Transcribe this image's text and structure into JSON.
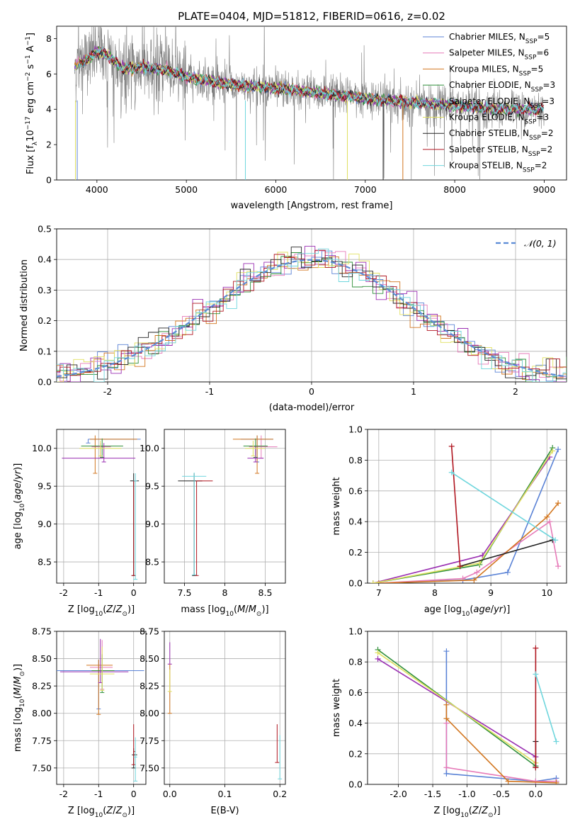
{
  "figure": {
    "title": "PLATE=0404, MJD=51812, FIBERID=0616, z=0.02"
  },
  "colors": {
    "Chabrier MILES": "#5b83d6",
    "Salpeter MILES": "#e67ab8",
    "Kroupa MILES": "#d2761f",
    "Chabrier ELODIE": "#2f8f3a",
    "Salpeter ELODIE": "#9a2fb2",
    "Kroupa ELODIE": "#e0e060",
    "Chabrier STELIB": "#222222",
    "Salpeter STELIB": "#b01620",
    "Kroupa STELIB": "#6fd6dd",
    "data": "#808080",
    "normal": "#5b8bd6",
    "grid": "#b0b0b0"
  },
  "chart_data": [
    {
      "id": "spectrum",
      "type": "line",
      "title": "PLATE=0404, MJD=51812, FIBERID=0616, z=0.02",
      "xlabel": "wavelength [Angstrom, rest frame]",
      "ylabel": "Flux [f_λ 10^-17 erg cm^-2 s^-1 A^-1]",
      "xlim": [
        3550,
        9250
      ],
      "ylim": [
        0,
        8.7
      ],
      "xticks": [
        4000,
        5000,
        6000,
        7000,
        8000,
        9000
      ],
      "yticks": [
        0,
        2,
        4,
        6,
        8
      ],
      "grid": false,
      "legend_position": "top-right",
      "legend": [
        {
          "name": "Chabrier MILES",
          "nssp": "5"
        },
        {
          "name": "Salpeter MILES",
          "nssp": "6"
        },
        {
          "name": "Kroupa MILES",
          "nssp": "5"
        },
        {
          "name": "Chabrier ELODIE",
          "nssp": "3"
        },
        {
          "name": "Salpeter ELODIE",
          "nssp": "3"
        },
        {
          "name": "Kroupa ELODIE",
          "nssp": "3"
        },
        {
          "name": "Chabrier STELIB",
          "nssp": "2"
        },
        {
          "name": "Salpeter STELIB",
          "nssp": "2"
        },
        {
          "name": "Kroupa STELIB",
          "nssp": "2"
        }
      ],
      "model_continuum": {
        "x": [
          3750,
          3800,
          3900,
          4000,
          4100,
          4300,
          4500,
          4800,
          5000,
          5500,
          6000,
          6500,
          7000,
          7500,
          8000,
          8500,
          9000
        ],
        "y": [
          6.4,
          6.6,
          6.8,
          7.3,
          7.1,
          6.3,
          6.4,
          6.2,
          5.8,
          5.4,
          5.2,
          4.9,
          4.6,
          4.4,
          4.2,
          4.0,
          4.0
        ]
      },
      "data_range": [
        3750,
        9000
      ]
    },
    {
      "id": "residuals",
      "type": "line",
      "xlabel": "(data-model)/error",
      "ylabel": "Normed distribution",
      "xlim": [
        -2.5,
        2.5
      ],
      "ylim": [
        0,
        0.5
      ],
      "xticks": [
        -2,
        -1,
        0,
        1,
        2
      ],
      "yticks": [
        0.0,
        0.1,
        0.2,
        0.3,
        0.4,
        0.5
      ],
      "grid": true,
      "legend_position": "top-right",
      "legend": [
        {
          "name": "𝒩(0, 1)"
        }
      ],
      "normal": {
        "mean": 0,
        "sigma": 1
      }
    },
    {
      "id": "age-vs-Z",
      "type": "scatter",
      "xlabel": "Z [log10(Z/Z⊙)]",
      "ylabel": "age  [log10(age/yr)]",
      "xlim": [
        -2.2,
        0.35
      ],
      "ylim": [
        8.22,
        10.25
      ],
      "xticks": [
        -2,
        -1,
        0
      ],
      "yticks": [
        8.5,
        9.0,
        9.5,
        10.0
      ],
      "grid": true,
      "errorbars": [
        {
          "model": "Chabrier MILES",
          "x": -1.3,
          "y": 10.12,
          "xerr": [
            0,
            1.5
          ],
          "yerr": [
            0.05,
            0
          ]
        },
        {
          "model": "Salpeter MILES",
          "x": -0.95,
          "y": 10.02,
          "xerr": [
            0.25,
            0.3
          ],
          "yerr": [
            0.15,
            0.05
          ]
        },
        {
          "model": "Kroupa MILES",
          "x": -1.1,
          "y": 10.12,
          "xerr": [
            0.15,
            1.2
          ],
          "yerr": [
            0.45,
            0.05
          ]
        },
        {
          "model": "Chabrier ELODIE",
          "x": -0.9,
          "y": 10.03,
          "xerr": [
            0.6,
            0.6
          ],
          "yerr": [
            0.15,
            0.1
          ]
        },
        {
          "model": "Salpeter ELODIE",
          "x": -0.85,
          "y": 9.87,
          "xerr": [
            1.2,
            0.9
          ],
          "yerr": [
            0.05,
            0.2
          ]
        },
        {
          "model": "Kroupa ELODIE",
          "x": -0.95,
          "y": 10.0,
          "xerr": [
            0.6,
            0.6
          ],
          "yerr": [
            0.1,
            0.1
          ]
        },
        {
          "model": "Chabrier STELIB",
          "x": 0.0,
          "y": 9.57,
          "xerr": [
            0.1,
            0.15
          ],
          "yerr": [
            1.25,
            0.1
          ]
        },
        {
          "model": "Salpeter STELIB",
          "x": 0.0,
          "y": 9.57,
          "xerr": [
            0.0,
            0.05
          ],
          "yerr": [
            1.25,
            0
          ]
        },
        {
          "model": "Kroupa STELIB",
          "x": 0.05,
          "y": 9.57,
          "xerr": [
            0.05,
            0.05
          ],
          "yerr": [
            1.3,
            0.1
          ]
        }
      ]
    },
    {
      "id": "age-vs-mass",
      "type": "scatter",
      "xlabel": "mass [log10(M/M⊙)]",
      "ylabel": "",
      "xlim": [
        7.25,
        8.75
      ],
      "ylim": [
        8.22,
        10.25
      ],
      "xticks": [
        7.5,
        8.0,
        8.5
      ],
      "yticks": [
        8.5,
        9.0,
        9.5,
        10.0
      ],
      "grid": true,
      "errorbars": [
        {
          "model": "Chabrier MILES",
          "x": 8.4,
          "y": 10.12,
          "xerr": [
            0.2,
            0.2
          ],
          "yerr": [
            0.3,
            0.05
          ]
        },
        {
          "model": "Salpeter MILES",
          "x": 8.45,
          "y": 10.02,
          "xerr": [
            0.15,
            0.2
          ],
          "yerr": [
            0.15,
            0.15
          ]
        },
        {
          "model": "Kroupa MILES",
          "x": 8.4,
          "y": 10.12,
          "xerr": [
            0.3,
            0.2
          ],
          "yerr": [
            0.45,
            0.05
          ]
        },
        {
          "model": "Chabrier ELODIE",
          "x": 8.38,
          "y": 10.03,
          "xerr": [
            0.15,
            0.15
          ],
          "yerr": [
            0.15,
            0.1
          ]
        },
        {
          "model": "Salpeter ELODIE",
          "x": 8.38,
          "y": 9.87,
          "xerr": [
            0.1,
            0.1
          ],
          "yerr": [
            0.05,
            0.15
          ]
        },
        {
          "model": "Kroupa ELODIE",
          "x": 8.35,
          "y": 10.0,
          "xerr": [
            0.1,
            0.15
          ],
          "yerr": [
            0.1,
            0.1
          ]
        },
        {
          "model": "Chabrier STELIB",
          "x": 7.62,
          "y": 9.57,
          "xerr": [
            0.2,
            0.1
          ],
          "yerr": [
            1.25,
            0.1
          ]
        },
        {
          "model": "Salpeter STELIB",
          "x": 7.65,
          "y": 9.57,
          "xerr": [
            0.0,
            0.2
          ],
          "yerr": [
            1.25,
            0
          ]
        },
        {
          "model": "Kroupa STELIB",
          "x": 7.62,
          "y": 9.63,
          "xerr": [
            0.15,
            0.15
          ],
          "yerr": [
            1.3,
            0.05
          ]
        }
      ]
    },
    {
      "id": "weight-vs-age",
      "type": "line",
      "xlabel": "age  [log10(age/yr)]",
      "ylabel": "mass weight",
      "xlim": [
        6.8,
        10.35
      ],
      "ylim": [
        0,
        1.0
      ],
      "xticks": [
        7,
        8,
        9,
        10
      ],
      "yticks": [
        0.0,
        0.2,
        0.4,
        0.6,
        0.8,
        1.0
      ],
      "grid": true,
      "series": [
        {
          "name": "Chabrier MILES",
          "x": [
            7.0,
            8.5,
            9.3,
            10.2
          ],
          "y": [
            0.0,
            0.02,
            0.07,
            0.87
          ]
        },
        {
          "name": "Salpeter MILES",
          "x": [
            7.0,
            8.5,
            8.75,
            10.05,
            10.2
          ],
          "y": [
            0.0,
            0.03,
            0.07,
            0.4,
            0.11
          ]
        },
        {
          "name": "Kroupa MILES",
          "x": [
            7.0,
            8.7,
            10.0,
            10.2
          ],
          "y": [
            0.0,
            0.02,
            0.43,
            0.52
          ]
        },
        {
          "name": "Chabrier ELODIE",
          "x": [
            6.9,
            8.8,
            10.1
          ],
          "y": [
            0.0,
            0.12,
            0.88
          ]
        },
        {
          "name": "Salpeter ELODIE",
          "x": [
            6.9,
            8.85,
            10.05
          ],
          "y": [
            0.0,
            0.18,
            0.82
          ]
        },
        {
          "name": "Kroupa ELODIE",
          "x": [
            6.9,
            8.8,
            10.1
          ],
          "y": [
            0.0,
            0.13,
            0.86
          ]
        },
        {
          "name": "Chabrier STELIB",
          "x": [
            8.45,
            10.1
          ],
          "y": [
            0.11,
            0.28
          ]
        },
        {
          "name": "Salpeter STELIB",
          "x": [
            8.3,
            8.45
          ],
          "y": [
            0.89,
            0.11
          ]
        },
        {
          "name": "Kroupa STELIB",
          "x": [
            8.3,
            10.15
          ],
          "y": [
            0.72,
            0.28
          ]
        }
      ]
    },
    {
      "id": "mass-vs-Z",
      "type": "scatter",
      "xlabel": "Z [log10(Z/Z⊙)]",
      "ylabel": "mass [log10(M/M⊙)]",
      "xlim": [
        -2.2,
        0.35
      ],
      "ylim": [
        7.35,
        8.75
      ],
      "xticks": [
        -2,
        -1,
        0
      ],
      "yticks": [
        7.5,
        7.75,
        8.0,
        8.25,
        8.5,
        8.75
      ],
      "grid": true,
      "errorbars": [
        {
          "model": "Chabrier MILES",
          "x": -1.0,
          "y": 8.39,
          "xerr": [
            1.2,
            1.3
          ],
          "yerr": [
            0.35,
            0.1
          ]
        },
        {
          "model": "Salpeter MILES",
          "x": -0.9,
          "y": 8.42,
          "xerr": [
            0.35,
            0.3
          ],
          "yerr": [
            0.2,
            0.25
          ]
        },
        {
          "model": "Kroupa MILES",
          "x": -1.0,
          "y": 8.44,
          "xerr": [
            0.35,
            0.4
          ],
          "yerr": [
            0.45,
            0.05
          ]
        },
        {
          "model": "Chabrier ELODIE",
          "x": -0.9,
          "y": 8.39,
          "xerr": [
            0.3,
            0.35
          ],
          "yerr": [
            0.2,
            0.15
          ]
        },
        {
          "model": "Salpeter ELODIE",
          "x": -0.95,
          "y": 8.38,
          "xerr": [
            1.15,
            0.8
          ],
          "yerr": [
            0.1,
            0.3
          ]
        },
        {
          "model": "Kroupa ELODIE",
          "x": -0.9,
          "y": 8.36,
          "xerr": [
            0.35,
            0.35
          ],
          "yerr": [
            0.15,
            0.25
          ]
        },
        {
          "model": "Chabrier STELIB",
          "x": 0.0,
          "y": 7.62,
          "xerr": [
            0.05,
            0.1
          ],
          "yerr": [
            0.12,
            0.06
          ]
        },
        {
          "model": "Salpeter STELIB",
          "x": 0.0,
          "y": 7.65,
          "xerr": [
            0.0,
            0.05
          ],
          "yerr": [
            0.12,
            0.25
          ]
        },
        {
          "model": "Kroupa STELIB",
          "x": 0.05,
          "y": 7.6,
          "xerr": [
            0.05,
            0.05
          ],
          "yerr": [
            0.22,
            0.18
          ]
        }
      ]
    },
    {
      "id": "mass-vs-ebv",
      "type": "scatter",
      "xlabel": "E(B-V)",
      "ylabel": "",
      "xlim": [
        -0.01,
        0.21
      ],
      "ylim": [
        7.35,
        8.75
      ],
      "xticks": [
        0.0,
        0.1,
        0.2
      ],
      "yticks": [
        7.5,
        7.75,
        8.0,
        8.25,
        8.5,
        8.75
      ],
      "grid": true,
      "errorbars": [
        {
          "model": "Salpeter ELODIE",
          "x": 0.0,
          "y": 8.55,
          "yerr": [
            0.1,
            0.1
          ]
        },
        {
          "model": "Kroupa MILES",
          "x": 0.0,
          "y": 8.3,
          "yerr": [
            0.3,
            0.15
          ]
        },
        {
          "model": "Kroupa ELODIE",
          "x": 0.0,
          "y": 8.3,
          "yerr": [
            0.1,
            0.1
          ]
        },
        {
          "model": "Salpeter STELIB",
          "x": 0.195,
          "y": 7.7,
          "yerr": [
            0.15,
            0.2
          ]
        },
        {
          "model": "Kroupa STELIB",
          "x": 0.2,
          "y": 7.6,
          "yerr": [
            0.2,
            0.2
          ]
        }
      ]
    },
    {
      "id": "weight-vs-Z",
      "type": "line",
      "xlabel": "Z [log10(Z/Z⊙)]",
      "ylabel": "mass weight",
      "xlim": [
        -2.45,
        0.45
      ],
      "ylim": [
        0,
        1.0
      ],
      "xticks": [
        -2.0,
        -1.5,
        -1.0,
        -0.5,
        0.0
      ],
      "yticks": [
        0.0,
        0.2,
        0.4,
        0.6,
        0.8,
        1.0
      ],
      "grid": true,
      "series": [
        {
          "name": "Chabrier MILES",
          "x": [
            -1.3,
            -1.3,
            0.0,
            0.3,
            0.3
          ],
          "y": [
            0.87,
            0.07,
            0.02,
            0.04,
            0.02
          ]
        },
        {
          "name": "Salpeter MILES",
          "x": [
            -1.3,
            -1.3,
            0.0,
            0.3
          ],
          "y": [
            0.4,
            0.11,
            0.02,
            0.02
          ]
        },
        {
          "name": "Kroupa MILES",
          "x": [
            -1.3,
            -1.3,
            -0.4,
            0.3
          ],
          "y": [
            0.52,
            0.43,
            0.02,
            0.01
          ]
        },
        {
          "name": "Chabrier ELODIE",
          "x": [
            -2.3,
            0.0
          ],
          "y": [
            0.88,
            0.12
          ]
        },
        {
          "name": "Salpeter ELODIE",
          "x": [
            -2.3,
            0.0
          ],
          "y": [
            0.82,
            0.18
          ]
        },
        {
          "name": "Kroupa ELODIE",
          "x": [
            -2.3,
            0.0
          ],
          "y": [
            0.86,
            0.14
          ]
        },
        {
          "name": "Chabrier STELIB",
          "x": [
            0.0,
            0.0
          ],
          "y": [
            0.11,
            0.28
          ]
        },
        {
          "name": "Salpeter STELIB",
          "x": [
            0.0,
            0.0
          ],
          "y": [
            0.89,
            0.11
          ]
        },
        {
          "name": "Kroupa STELIB",
          "x": [
            0.0,
            0.3
          ],
          "y": [
            0.72,
            0.28
          ]
        }
      ]
    }
  ]
}
